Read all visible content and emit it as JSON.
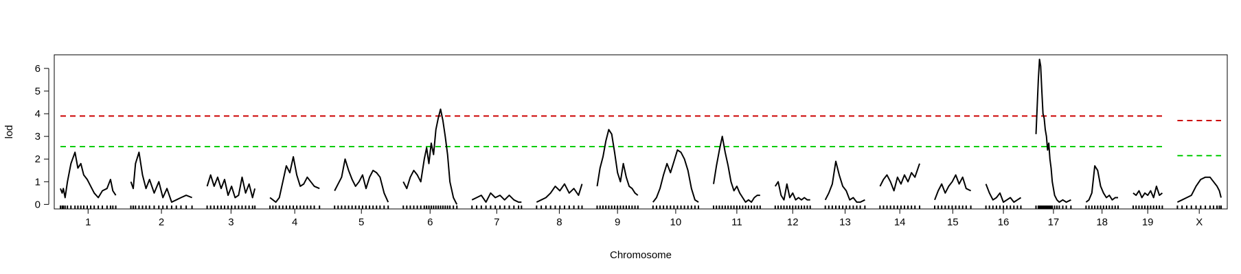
{
  "chart_data": {
    "type": "line",
    "xlabel": "Chromosome",
    "ylabel": "lod",
    "ylim": [
      -0.2,
      6.6
    ],
    "yticks": [
      0,
      1,
      2,
      3,
      4,
      5,
      6
    ],
    "grid": false,
    "chromosomes": [
      {
        "name": "1",
        "length_cM": 95
      },
      {
        "name": "2",
        "length_cM": 105
      },
      {
        "name": "3",
        "length_cM": 82
      },
      {
        "name": "4",
        "length_cM": 85
      },
      {
        "name": "5",
        "length_cM": 92
      },
      {
        "name": "6",
        "length_cM": 92
      },
      {
        "name": "7",
        "length_cM": 85
      },
      {
        "name": "8",
        "length_cM": 78
      },
      {
        "name": "9",
        "length_cM": 70
      },
      {
        "name": "10",
        "length_cM": 78
      },
      {
        "name": "11",
        "length_cM": 80
      },
      {
        "name": "12",
        "length_cM": 60
      },
      {
        "name": "13",
        "length_cM": 68
      },
      {
        "name": "14",
        "length_cM": 68
      },
      {
        "name": "15",
        "length_cM": 62
      },
      {
        "name": "16",
        "length_cM": 60
      },
      {
        "name": "17",
        "length_cM": 60
      },
      {
        "name": "18",
        "length_cM": 55
      },
      {
        "name": "19",
        "length_cM": 50
      },
      {
        "name": "X",
        "length_cM": 75
      }
    ],
    "series": [
      {
        "chromosome": "1",
        "x": [
          0,
          3,
          5,
          8,
          12,
          18,
          25,
          30,
          35,
          40,
          46,
          52,
          58,
          65,
          72,
          80,
          86,
          90,
          95
        ],
        "y": [
          0.7,
          0.5,
          0.7,
          0.3,
          1.0,
          1.8,
          2.3,
          1.6,
          1.8,
          1.3,
          1.1,
          0.8,
          0.5,
          0.3,
          0.6,
          0.7,
          1.1,
          0.6,
          0.4
        ]
      },
      {
        "chromosome": "2",
        "x": [
          0,
          4,
          8,
          14,
          20,
          26,
          32,
          40,
          48,
          55,
          62,
          70,
          78,
          86,
          95,
          105
        ],
        "y": [
          1.0,
          0.7,
          1.8,
          2.3,
          1.3,
          0.7,
          1.1,
          0.5,
          1.0,
          0.3,
          0.7,
          0.1,
          0.2,
          0.3,
          0.4,
          0.3
        ]
      },
      {
        "chromosome": "3",
        "x": [
          0,
          6,
          12,
          18,
          24,
          30,
          36,
          42,
          48,
          54,
          60,
          66,
          72,
          78,
          82
        ],
        "y": [
          0.8,
          1.3,
          0.8,
          1.2,
          0.7,
          1.1,
          0.4,
          0.8,
          0.3,
          0.4,
          1.2,
          0.5,
          0.9,
          0.3,
          0.7
        ]
      },
      {
        "chromosome": "4",
        "x": [
          0,
          5,
          10,
          16,
          22,
          28,
          34,
          40,
          46,
          52,
          58,
          64,
          70,
          76,
          85
        ],
        "y": [
          0.3,
          0.2,
          0.1,
          0.3,
          1.0,
          1.7,
          1.4,
          2.1,
          1.3,
          0.8,
          0.9,
          1.2,
          1.0,
          0.8,
          0.7
        ]
      },
      {
        "chromosome": "5",
        "x": [
          0,
          6,
          12,
          18,
          24,
          30,
          36,
          42,
          48,
          54,
          60,
          66,
          72,
          78,
          85,
          92
        ],
        "y": [
          0.6,
          0.9,
          1.2,
          2.0,
          1.5,
          1.1,
          0.8,
          1.0,
          1.3,
          0.7,
          1.2,
          1.5,
          1.4,
          1.2,
          0.5,
          0.1
        ]
      },
      {
        "chromosome": "6",
        "x": [
          0,
          6,
          12,
          18,
          24,
          30,
          36,
          40,
          44,
          48,
          52,
          56,
          60,
          64,
          68,
          72,
          76,
          80,
          86,
          92
        ],
        "y": [
          1.0,
          0.7,
          1.2,
          1.5,
          1.3,
          1.0,
          2.0,
          2.5,
          1.8,
          2.7,
          2.2,
          3.3,
          3.8,
          4.2,
          3.7,
          3.0,
          2.2,
          1.0,
          0.3,
          0.0
        ]
      },
      {
        "chromosome": "7",
        "x": [
          0,
          8,
          16,
          24,
          32,
          40,
          48,
          56,
          64,
          72,
          80,
          85
        ],
        "y": [
          0.2,
          0.3,
          0.4,
          0.1,
          0.5,
          0.3,
          0.4,
          0.2,
          0.4,
          0.2,
          0.1,
          0.1
        ]
      },
      {
        "chromosome": "8",
        "x": [
          0,
          8,
          16,
          24,
          32,
          40,
          48,
          56,
          64,
          72,
          78
        ],
        "y": [
          0.1,
          0.2,
          0.3,
          0.5,
          0.8,
          0.6,
          0.9,
          0.5,
          0.7,
          0.4,
          0.9
        ]
      },
      {
        "chromosome": "9",
        "x": [
          0,
          5,
          10,
          15,
          20,
          25,
          30,
          35,
          40,
          45,
          50,
          55,
          60,
          65,
          70
        ],
        "y": [
          0.8,
          1.6,
          2.1,
          2.8,
          3.3,
          3.1,
          2.3,
          1.4,
          1.0,
          1.8,
          1.2,
          0.8,
          0.7,
          0.5,
          0.4
        ]
      },
      {
        "chromosome": "10",
        "x": [
          0,
          6,
          12,
          18,
          24,
          30,
          36,
          42,
          48,
          54,
          60,
          66,
          72,
          78
        ],
        "y": [
          0.1,
          0.3,
          0.7,
          1.3,
          1.8,
          1.4,
          1.9,
          2.4,
          2.3,
          2.0,
          1.5,
          0.7,
          0.2,
          0.1
        ]
      },
      {
        "chromosome": "11",
        "x": [
          0,
          5,
          10,
          15,
          20,
          25,
          30,
          35,
          40,
          45,
          50,
          55,
          60,
          65,
          70,
          75,
          80
        ],
        "y": [
          0.9,
          1.7,
          2.4,
          3.0,
          2.3,
          1.7,
          1.0,
          0.6,
          0.8,
          0.5,
          0.3,
          0.1,
          0.2,
          0.1,
          0.3,
          0.4,
          0.4
        ]
      },
      {
        "chromosome": "12",
        "x": [
          0,
          5,
          10,
          15,
          20,
          25,
          30,
          35,
          40,
          45,
          50,
          55,
          60
        ],
        "y": [
          0.8,
          1.0,
          0.4,
          0.2,
          0.9,
          0.3,
          0.5,
          0.2,
          0.3,
          0.2,
          0.3,
          0.2,
          0.2
        ]
      },
      {
        "chromosome": "13",
        "x": [
          0,
          6,
          12,
          18,
          24,
          30,
          36,
          42,
          48,
          54,
          60,
          68
        ],
        "y": [
          0.2,
          0.5,
          0.9,
          1.9,
          1.3,
          0.8,
          0.6,
          0.2,
          0.3,
          0.1,
          0.1,
          0.2
        ]
      },
      {
        "chromosome": "14",
        "x": [
          0,
          6,
          12,
          18,
          24,
          30,
          36,
          42,
          48,
          54,
          60,
          68
        ],
        "y": [
          0.8,
          1.1,
          1.3,
          1.0,
          0.6,
          1.2,
          0.9,
          1.3,
          1.0,
          1.4,
          1.2,
          1.8
        ]
      },
      {
        "chromosome": "15",
        "x": [
          0,
          6,
          12,
          18,
          24,
          30,
          36,
          42,
          48,
          54,
          62
        ],
        "y": [
          0.2,
          0.6,
          0.9,
          0.5,
          0.8,
          1.0,
          1.3,
          0.9,
          1.2,
          0.7,
          0.6
        ]
      },
      {
        "chromosome": "16",
        "x": [
          0,
          6,
          12,
          18,
          24,
          30,
          36,
          42,
          48,
          54,
          60
        ],
        "y": [
          0.9,
          0.5,
          0.2,
          0.3,
          0.5,
          0.1,
          0.2,
          0.3,
          0.1,
          0.2,
          0.3
        ]
      },
      {
        "chromosome": "17",
        "x": [
          0,
          4,
          6,
          8,
          10,
          12,
          14,
          16,
          18,
          20,
          22,
          24,
          26,
          28,
          32,
          36,
          40,
          46,
          52,
          60
        ],
        "y": [
          3.1,
          5.5,
          6.4,
          6.1,
          5.0,
          4.0,
          3.8,
          3.3,
          3.0,
          2.4,
          2.7,
          2.0,
          1.6,
          1.0,
          0.4,
          0.2,
          0.1,
          0.2,
          0.1,
          0.2
        ]
      },
      {
        "chromosome": "18",
        "x": [
          0,
          5,
          10,
          15,
          20,
          25,
          30,
          35,
          40,
          45,
          50,
          55
        ],
        "y": [
          0.1,
          0.2,
          0.5,
          1.7,
          1.5,
          0.8,
          0.5,
          0.3,
          0.4,
          0.2,
          0.3,
          0.3
        ]
      },
      {
        "chromosome": "19",
        "x": [
          0,
          5,
          10,
          15,
          20,
          25,
          30,
          35,
          40,
          45,
          50
        ],
        "y": [
          0.5,
          0.4,
          0.6,
          0.3,
          0.5,
          0.4,
          0.6,
          0.3,
          0.8,
          0.4,
          0.5
        ]
      },
      {
        "chromosome": "X",
        "x": [
          0,
          8,
          16,
          24,
          32,
          40,
          48,
          56,
          62,
          68,
          72,
          75
        ],
        "y": [
          0.1,
          0.2,
          0.3,
          0.4,
          0.8,
          1.1,
          1.2,
          1.2,
          1.0,
          0.8,
          0.6,
          0.3
        ]
      }
    ],
    "thresholds": [
      {
        "level": "red",
        "color": "#cc0000",
        "autosome_y": 3.9,
        "x_chr_y": 3.7
      },
      {
        "level": "green",
        "color": "#00cc00",
        "autosome_y": 2.55,
        "x_chr_y": 2.15
      }
    ],
    "line_color": "#000000"
  }
}
